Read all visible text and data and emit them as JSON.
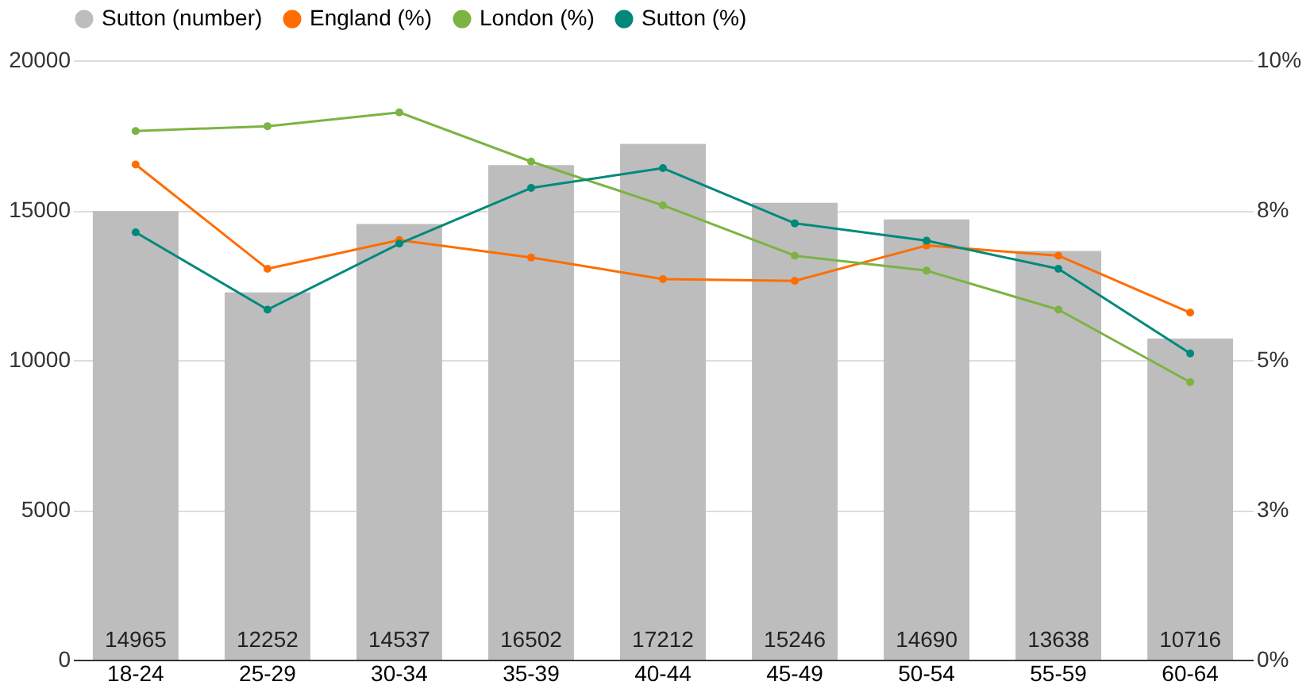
{
  "chart_data": {
    "type": "bar",
    "categories": [
      "18-24",
      "25-29",
      "30-34",
      "35-39",
      "40-44",
      "45-49",
      "50-54",
      "55-59",
      "60-64"
    ],
    "series": [
      {
        "name": "Sutton (number)",
        "color": "#bdbdbd",
        "values": [
          14965,
          12252,
          14537,
          16502,
          17212,
          15246,
          14690,
          13638,
          10716
        ],
        "value_labels": [
          "14965",
          "12252",
          "14537",
          "16502",
          "17212",
          "15246",
          "14690",
          "13638",
          "10716"
        ]
      },
      {
        "name": "England (%)",
        "color": "#ff6d01",
        "type": "line",
        "axis": "y2",
        "values": [
          8.26,
          6.52,
          7.0,
          6.71,
          6.35,
          6.32,
          6.91,
          6.74,
          5.79
        ]
      },
      {
        "name": "London (%)",
        "color": "#7cb342",
        "type": "line",
        "axis": "y2",
        "values": [
          8.82,
          8.9,
          9.13,
          8.31,
          7.58,
          6.74,
          6.49,
          5.84,
          4.63
        ]
      },
      {
        "name": "Sutton (%)",
        "color": "#00897b",
        "type": "line",
        "axis": "y2",
        "values": [
          7.13,
          5.84,
          6.94,
          7.87,
          8.2,
          7.28,
          6.99,
          6.52,
          5.11
        ]
      }
    ],
    "ylim": [
      0,
      20000
    ],
    "yticks": [
      0,
      5000,
      10000,
      15000,
      20000
    ],
    "y2lim": [
      0,
      10
    ],
    "y2ticks": [
      {
        "value": 0,
        "label": "0%"
      },
      {
        "value": 2.5,
        "label": "3%"
      },
      {
        "value": 5,
        "label": "5%"
      },
      {
        "value": 7.5,
        "label": "8%"
      },
      {
        "value": 10,
        "label": "10%"
      }
    ],
    "grid": "y",
    "legend": "top",
    "marker": "circle"
  }
}
